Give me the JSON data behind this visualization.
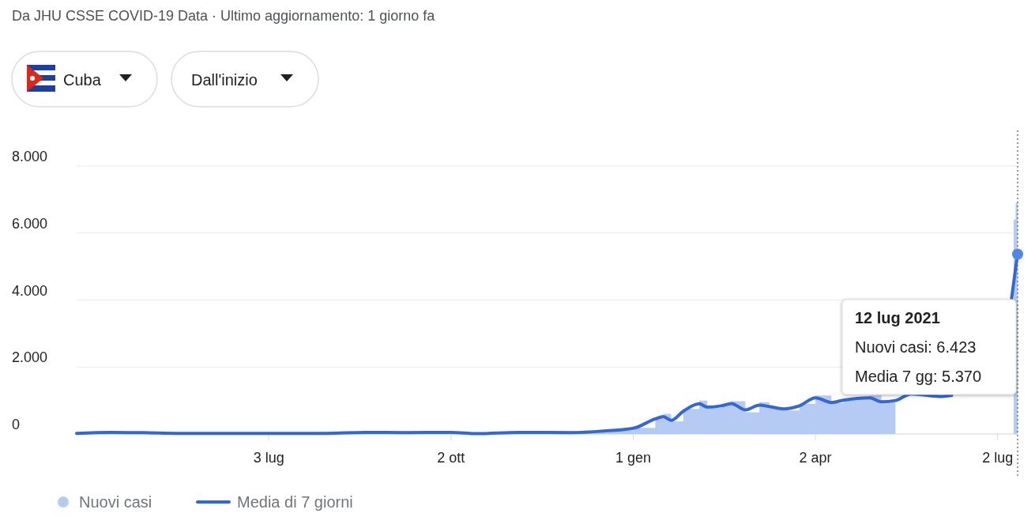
{
  "chart_data": {
    "type": "area",
    "annotations": [
      "Da JHU CSSE COVID-19 Data · Ultimo aggiornamento: 1 giorno fa",
      "Cuba",
      "Dall'inizio",
      "12 lug 2021",
      "Nuovi casi: 6.423",
      "Media 7 gg: 5.370"
    ],
    "series": [
      {
        "name": "Nuovi casi",
        "color": "#b5cbf4",
        "x": [
          "2020-03-29",
          "2020-04-15",
          "2020-05-01",
          "2020-05-20",
          "2020-06-15",
          "2020-07-03",
          "2020-08-01",
          "2020-08-20",
          "2020-09-10",
          "2020-10-02",
          "2020-10-15",
          "2020-11-05",
          "2020-12-01",
          "2020-12-20",
          "2021-01-01",
          "2021-01-12",
          "2021-01-16",
          "2021-01-20",
          "2021-01-26",
          "2021-02-03",
          "2021-02-07",
          "2021-02-14",
          "2021-02-19",
          "2021-02-26",
          "2021-03-05",
          "2021-03-10",
          "2021-03-17",
          "2021-03-25",
          "2021-04-02",
          "2021-04-10",
          "2021-04-16",
          "2021-04-29",
          "2021-05-05",
          "2021-05-12",
          "2021-05-20",
          "2021-06-03",
          "2021-06-09",
          "2021-06-20",
          "2021-07-10",
          "2021-07-11",
          "2021-07-12"
        ],
        "values": [
          30,
          60,
          40,
          20,
          10,
          10,
          20,
          60,
          40,
          50,
          10,
          50,
          40,
          100,
          180,
          500,
          600,
          380,
          750,
          1000,
          780,
          900,
          980,
          650,
          950,
          800,
          700,
          900,
          1150,
          920,
          1050,
          1150,
          950,
          1050,
          null,
          null,
          null,
          null,
          6400,
          6900,
          6423
        ]
      },
      {
        "name": "Media di 7 giorni",
        "type": "line",
        "color": "#3367d6",
        "x": [
          "2020-03-29",
          "2020-04-15",
          "2020-05-01",
          "2020-05-20",
          "2020-06-15",
          "2020-07-03",
          "2020-08-01",
          "2020-08-20",
          "2020-09-10",
          "2020-10-02",
          "2020-10-15",
          "2020-11-05",
          "2020-12-01",
          "2020-12-20",
          "2021-01-01",
          "2021-01-12",
          "2021-01-16",
          "2021-01-20",
          "2021-01-26",
          "2021-02-03",
          "2021-02-07",
          "2021-02-14",
          "2021-02-19",
          "2021-02-26",
          "2021-03-05",
          "2021-03-10",
          "2021-03-17",
          "2021-03-25",
          "2021-04-02",
          "2021-04-10",
          "2021-04-16",
          "2021-04-29",
          "2021-05-05",
          "2021-05-12",
          "2021-05-20",
          "2021-06-03",
          "2021-06-09",
          "2021-06-20",
          "2021-07-09",
          "2021-07-10",
          "2021-07-11",
          "2021-07-12"
        ],
        "values": [
          20,
          50,
          40,
          20,
          20,
          20,
          20,
          50,
          40,
          50,
          10,
          50,
          40,
          100,
          170,
          450,
          520,
          410,
          680,
          900,
          800,
          840,
          910,
          720,
          860,
          820,
          750,
          840,
          1080,
          940,
          1010,
          1080,
          960,
          1000,
          1200,
          1120,
          1150,
          null,
          4050,
          4500,
          4950,
          5370
        ]
      }
    ],
    "xlim": [
      "2020-03-29",
      "2021-07-12"
    ],
    "xticks": [
      {
        "value": "2020-07-03",
        "label": "3 lug"
      },
      {
        "value": "2020-10-02",
        "label": "2 ott"
      },
      {
        "value": "2021-01-01",
        "label": "1 gen"
      },
      {
        "value": "2021-04-02",
        "label": "2 apr"
      },
      {
        "value": "2021-07-02",
        "label": "2 lug"
      }
    ],
    "ylim": [
      0,
      8000
    ],
    "yticks": [
      0,
      {
        "value": 2000,
        "label": "2.000"
      },
      {
        "value": 4000,
        "label": "4.000"
      },
      {
        "value": 6000,
        "label": "6.000"
      },
      {
        "value": 8000,
        "label": "8.000"
      }
    ],
    "ref_lines": [
      {
        "axis": "x",
        "value": "2021-07-12",
        "color": "#757575",
        "line_style": "dotted"
      }
    ],
    "grid": "y",
    "legend": "bottom left",
    "marker": "none"
  }
}
